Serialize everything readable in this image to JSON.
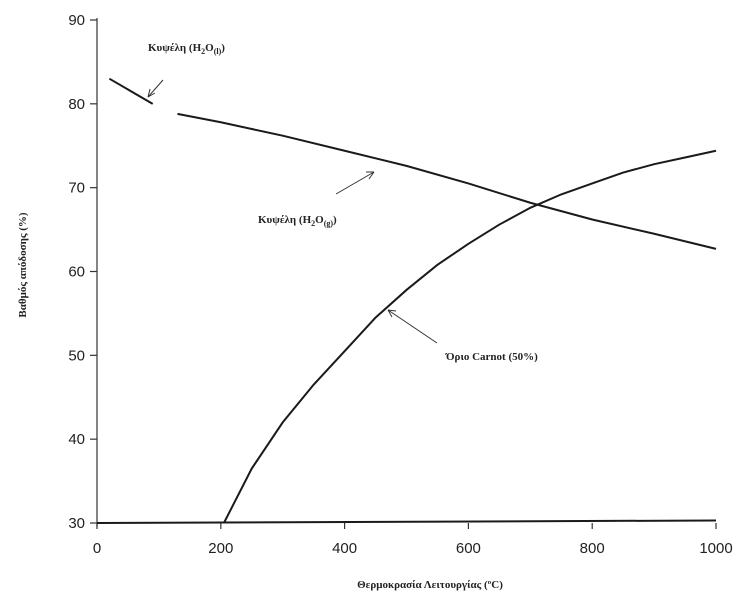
{
  "chart_data": {
    "type": "line",
    "xlabel": "Θερμοκρασία Λειτουργίας (ºC)",
    "ylabel": "Βαθμός απόδοσης (%)",
    "xlim": [
      0,
      1000
    ],
    "ylim": [
      30,
      90
    ],
    "xticks": [
      0,
      200,
      400,
      600,
      800,
      1000
    ],
    "yticks": [
      30,
      40,
      50,
      60,
      70,
      80,
      90
    ],
    "grid": false,
    "series": [
      {
        "name_main": "Κυψέλη (H",
        "name_sub1": "2",
        "name_mid": "O",
        "name_sub2": "(l)",
        "name_end": ")",
        "x": [
          20,
          90
        ],
        "y": [
          83,
          80
        ]
      },
      {
        "name_main": "Κυψέλη (H",
        "name_sub1": "2",
        "name_mid": "O",
        "name_sub2": "(g)",
        "name_end": ")",
        "x": [
          130,
          200,
          300,
          400,
          500,
          600,
          700,
          800,
          900,
          1000
        ],
        "y": [
          78.8,
          77.8,
          76.2,
          74.4,
          72.6,
          70.5,
          68.2,
          66.2,
          64.5,
          62.7
        ]
      },
      {
        "name": "Όριο Carnot (50%)",
        "x": [
          205,
          250,
          300,
          350,
          400,
          450,
          500,
          550,
          600,
          650,
          700,
          750,
          800,
          850,
          900,
          950,
          1000
        ],
        "y": [
          30,
          36.5,
          42,
          46.5,
          50.5,
          54.5,
          57.8,
          60.8,
          63.3,
          65.6,
          67.6,
          69.2,
          70.5,
          71.8,
          72.8,
          73.6,
          74.4
        ]
      },
      {
        "name_none": "",
        "x": [
          0,
          1000
        ],
        "y": [
          30,
          30.3
        ]
      }
    ]
  }
}
